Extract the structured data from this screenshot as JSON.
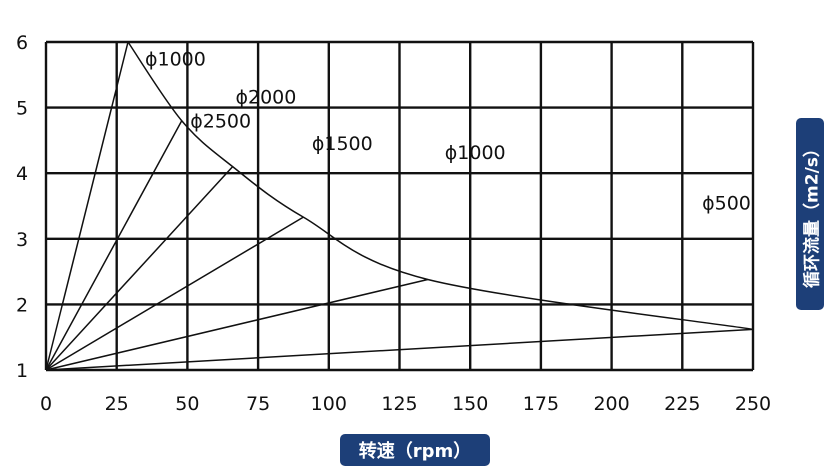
{
  "chart_data": {
    "type": "line",
    "xlabel": "转速（rpm）",
    "ylabel": "循环流量（m2/s）",
    "xlim": [
      0,
      250
    ],
    "ylim": [
      1,
      6
    ],
    "x_ticks": [
      "0",
      "25",
      "50",
      "75",
      "100",
      "125",
      "150",
      "175",
      "200",
      "225",
      "250"
    ],
    "y_ticks": [
      "1",
      "2",
      "3",
      "4",
      "5",
      "6"
    ],
    "grid": true,
    "envelope": {
      "x": [
        29,
        48,
        66,
        91,
        135,
        250
      ],
      "y": [
        6.0,
        4.8,
        4.1,
        3.33,
        2.38,
        1.62
      ]
    },
    "series": [
      {
        "x": [
          0,
          29
        ],
        "y": [
          1,
          6.0
        ]
      },
      {
        "x": [
          0,
          48
        ],
        "y": [
          1,
          4.8
        ]
      },
      {
        "x": [
          0,
          66
        ],
        "y": [
          1,
          4.1
        ]
      },
      {
        "x": [
          0,
          91
        ],
        "y": [
          1,
          3.33
        ]
      },
      {
        "x": [
          0,
          135
        ],
        "y": [
          1,
          2.38
        ]
      },
      {
        "x": [
          0,
          250
        ],
        "y": [
          1,
          1.62
        ]
      }
    ],
    "annotations": [
      {
        "text": "ϕ1000",
        "x": 35,
        "y": 5.75
      },
      {
        "text": "ϕ2000",
        "x": 67,
        "y": 5.17
      },
      {
        "text": "ϕ2500",
        "x": 51,
        "y": 4.8
      },
      {
        "text": "ϕ1500",
        "x": 94,
        "y": 4.46
      },
      {
        "text": "ϕ1000",
        "x": 141,
        "y": 4.32
      },
      {
        "text": "ϕ500",
        "x": 232,
        "y": 3.55
      }
    ]
  }
}
